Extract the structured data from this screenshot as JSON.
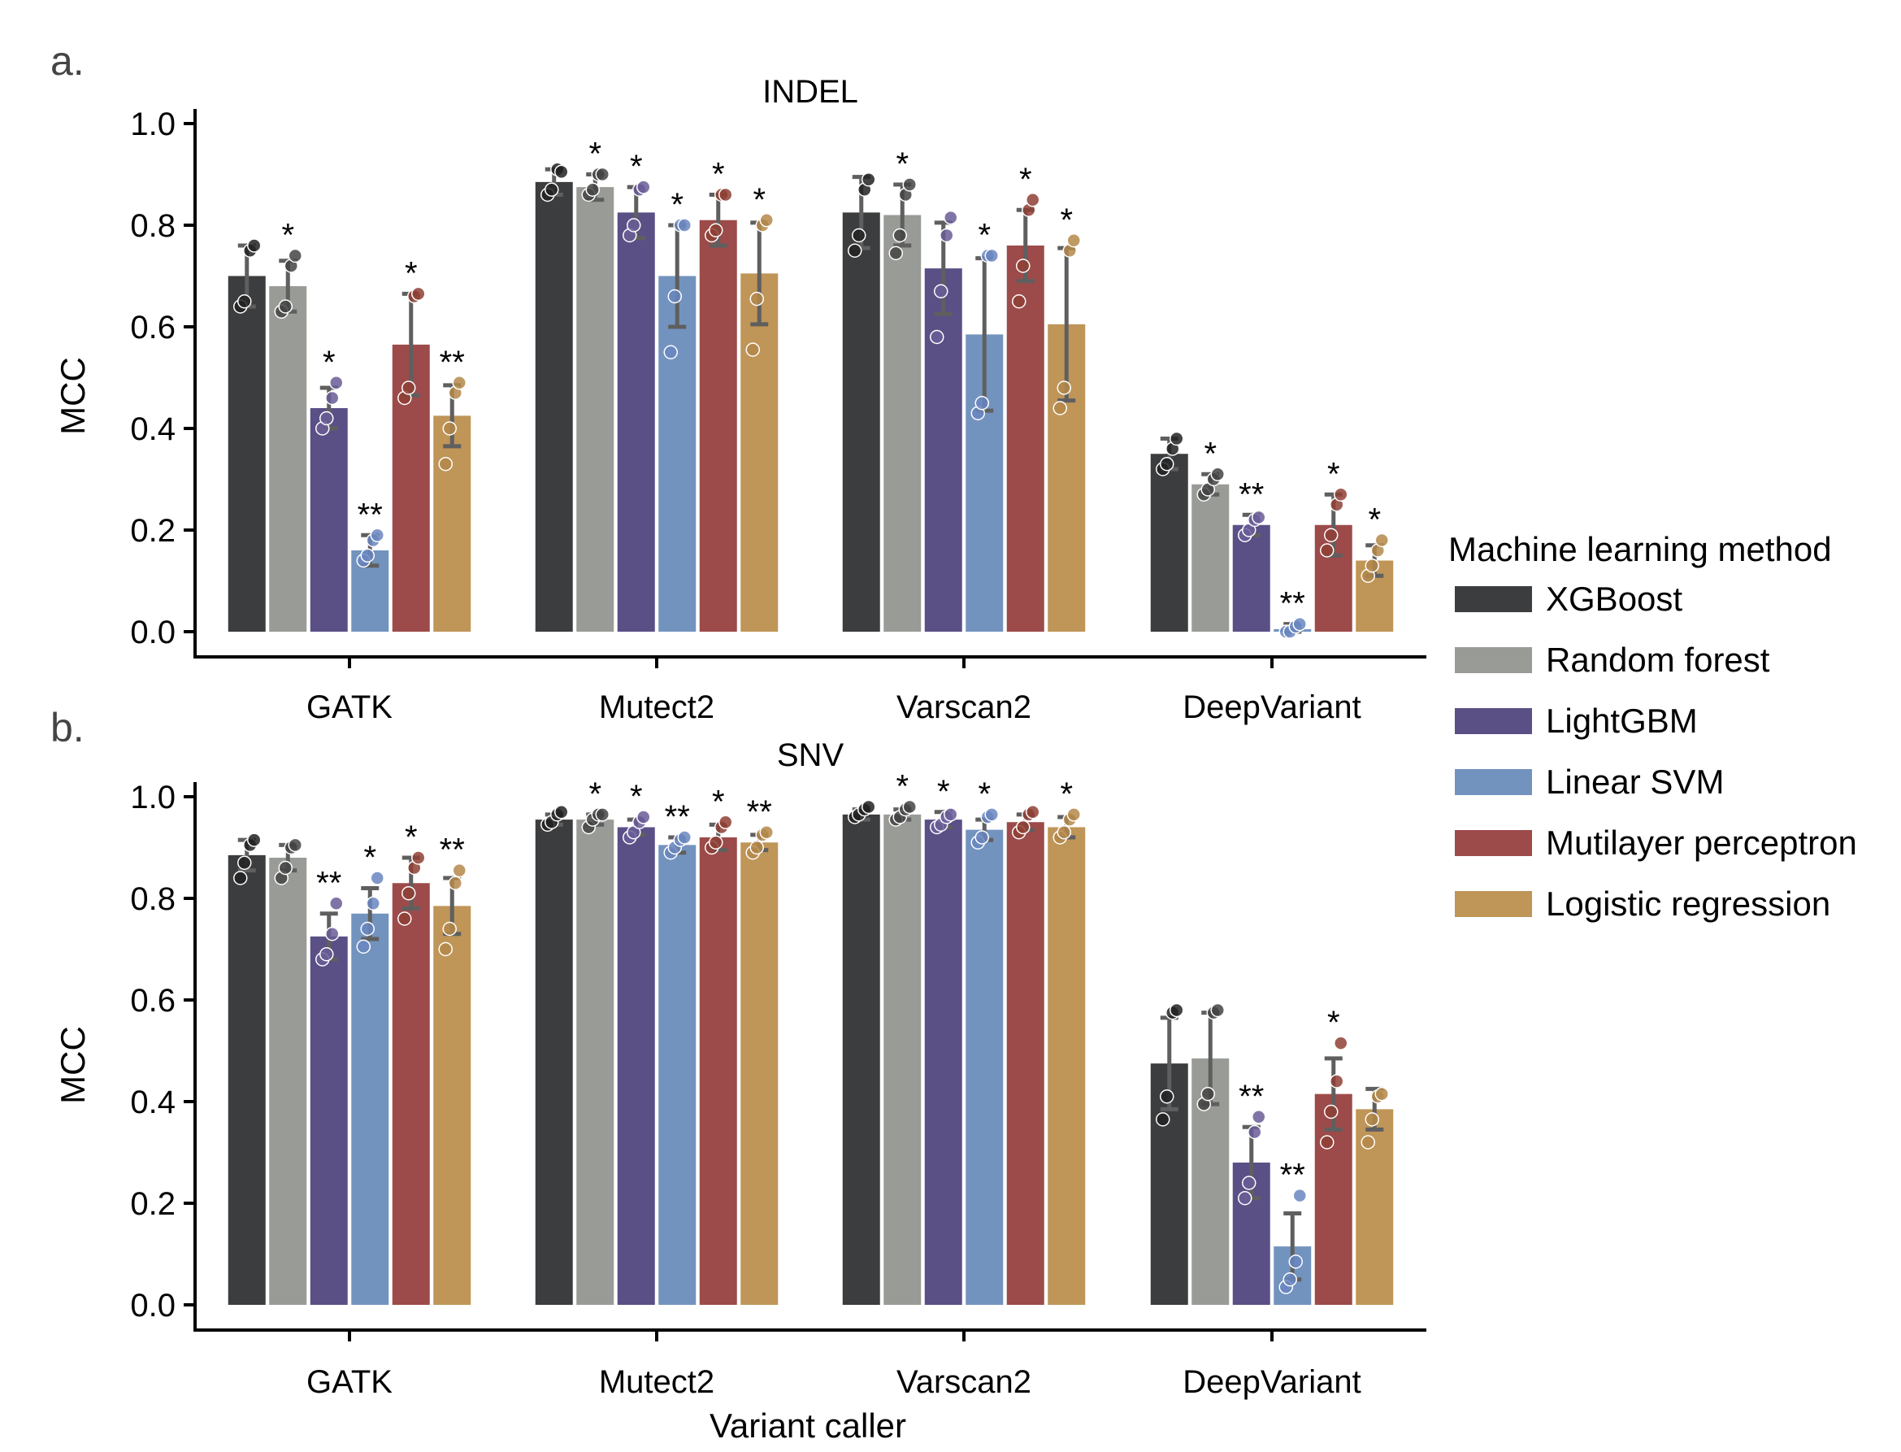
{
  "chart_data": [
    {
      "type": "bar",
      "panel_label": "a.",
      "title": "INDEL",
      "xlabel": "",
      "ylabel": "MCC",
      "ylim": [
        0,
        1.0
      ],
      "yticks": [
        "0.0",
        "0.2",
        "0.4",
        "0.6",
        "0.8",
        "1.0"
      ],
      "categories": [
        "GATK",
        "Mutect2",
        "Varscan2",
        "DeepVariant"
      ],
      "series": [
        {
          "name": "XGBoost",
          "values": [
            0.7,
            0.885,
            0.825,
            0.35
          ],
          "err": [
            0.06,
            0.025,
            0.07,
            0.03
          ],
          "points": [
            [
              0.64,
              0.65,
              0.75,
              0.76
            ],
            [
              0.86,
              0.87,
              0.91,
              0.905
            ],
            [
              0.75,
              0.78,
              0.87,
              0.89
            ],
            [
              0.32,
              0.33,
              0.36,
              0.38
            ]
          ],
          "sig": [
            "",
            "",
            "",
            ""
          ]
        },
        {
          "name": "Random forest",
          "values": [
            0.68,
            0.875,
            0.82,
            0.29
          ],
          "err": [
            0.05,
            0.025,
            0.06,
            0.02
          ],
          "points": [
            [
              0.63,
              0.64,
              0.72,
              0.74
            ],
            [
              0.86,
              0.87,
              0.9,
              0.9
            ],
            [
              0.745,
              0.78,
              0.86,
              0.88
            ],
            [
              0.27,
              0.28,
              0.3,
              0.31
            ]
          ],
          "sig": [
            "*",
            "*",
            "*",
            "*"
          ]
        },
        {
          "name": "LightGBM",
          "values": [
            0.44,
            0.825,
            0.715,
            0.21
          ],
          "err": [
            0.04,
            0.05,
            0.09,
            0.02
          ],
          "points": [
            [
              0.4,
              0.42,
              0.46,
              0.49
            ],
            [
              0.78,
              0.8,
              0.87,
              0.875
            ],
            [
              0.58,
              0.67,
              0.78,
              0.815
            ],
            [
              0.19,
              0.2,
              0.22,
              0.225
            ]
          ],
          "sig": [
            "*",
            "*",
            "",
            "**"
          ]
        },
        {
          "name": "Linear SVM",
          "values": [
            0.16,
            0.7,
            0.585,
            0.005
          ],
          "err": [
            0.03,
            0.1,
            0.15,
            0.01
          ],
          "points": [
            [
              0.14,
              0.15,
              0.18,
              0.19
            ],
            [
              0.55,
              0.66,
              0.8,
              0.8
            ],
            [
              0.43,
              0.45,
              0.74,
              0.74
            ],
            [
              0.0,
              0.0,
              0.01,
              0.015
            ]
          ],
          "sig": [
            "**",
            "*",
            "*",
            "**"
          ]
        },
        {
          "name": "Mutilayer perceptron",
          "values": [
            0.565,
            0.81,
            0.76,
            0.21
          ],
          "err": [
            0.1,
            0.05,
            0.07,
            0.06
          ],
          "points": [
            [
              0.46,
              0.48,
              0.66,
              0.665
            ],
            [
              0.78,
              0.79,
              0.86,
              0.86
            ],
            [
              0.65,
              0.72,
              0.83,
              0.85
            ],
            [
              0.16,
              0.19,
              0.25,
              0.27
            ]
          ],
          "sig": [
            "*",
            "*",
            "*",
            "*"
          ]
        },
        {
          "name": "Logistic regression",
          "values": [
            0.425,
            0.705,
            0.605,
            0.14
          ],
          "err": [
            0.06,
            0.1,
            0.15,
            0.03
          ],
          "points": [
            [
              0.33,
              0.4,
              0.47,
              0.49
            ],
            [
              0.555,
              0.655,
              0.8,
              0.81
            ],
            [
              0.44,
              0.48,
              0.75,
              0.77
            ],
            [
              0.11,
              0.13,
              0.16,
              0.18
            ]
          ],
          "sig": [
            "**",
            "*",
            "*",
            "*"
          ]
        }
      ]
    },
    {
      "type": "bar",
      "panel_label": "b.",
      "title": "SNV",
      "xlabel": "Variant caller",
      "ylabel": "MCC",
      "ylim": [
        0,
        1.0
      ],
      "yticks": [
        "0.0",
        "0.2",
        "0.4",
        "0.6",
        "0.8",
        "1.0"
      ],
      "categories": [
        "GATK",
        "Mutect2",
        "Varscan2",
        "DeepVariant"
      ],
      "series": [
        {
          "name": "XGBoost",
          "values": [
            0.885,
            0.955,
            0.965,
            0.475
          ],
          "err": [
            0.03,
            0.01,
            0.01,
            0.09
          ],
          "points": [
            [
              0.84,
              0.87,
              0.905,
              0.915
            ],
            [
              0.945,
              0.95,
              0.965,
              0.97
            ],
            [
              0.96,
              0.965,
              0.975,
              0.98
            ],
            [
              0.365,
              0.41,
              0.575,
              0.58
            ]
          ],
          "sig": [
            "",
            "",
            "",
            ""
          ]
        },
        {
          "name": "Random forest",
          "values": [
            0.88,
            0.955,
            0.965,
            0.485
          ],
          "err": [
            0.025,
            0.01,
            0.01,
            0.09
          ],
          "points": [
            [
              0.84,
              0.86,
              0.9,
              0.905
            ],
            [
              0.94,
              0.955,
              0.965,
              0.965
            ],
            [
              0.955,
              0.96,
              0.975,
              0.98
            ],
            [
              0.395,
              0.415,
              0.575,
              0.58
            ]
          ],
          "sig": [
            "",
            "*",
            "*",
            ""
          ]
        },
        {
          "name": "LightGBM",
          "values": [
            0.725,
            0.94,
            0.955,
            0.28
          ],
          "err": [
            0.045,
            0.015,
            0.015,
            0.07
          ],
          "points": [
            [
              0.68,
              0.69,
              0.73,
              0.79
            ],
            [
              0.92,
              0.93,
              0.95,
              0.96
            ],
            [
              0.94,
              0.945,
              0.96,
              0.965
            ],
            [
              0.21,
              0.24,
              0.34,
              0.37
            ]
          ],
          "sig": [
            "**",
            "*",
            "*",
            "**"
          ]
        },
        {
          "name": "Linear SVM",
          "values": [
            0.77,
            0.905,
            0.935,
            0.115
          ],
          "err": [
            0.05,
            0.015,
            0.02,
            0.065
          ],
          "points": [
            [
              0.705,
              0.74,
              0.79,
              0.84
            ],
            [
              0.89,
              0.9,
              0.915,
              0.92
            ],
            [
              0.91,
              0.92,
              0.96,
              0.965
            ],
            [
              0.035,
              0.05,
              0.085,
              0.215
            ]
          ],
          "sig": [
            "*",
            "**",
            "*",
            "**"
          ]
        },
        {
          "name": "Mutilayer perceptron",
          "values": [
            0.83,
            0.92,
            0.95,
            0.415
          ],
          "err": [
            0.05,
            0.025,
            0.015,
            0.07
          ],
          "points": [
            [
              0.76,
              0.81,
              0.86,
              0.88
            ],
            [
              0.9,
              0.91,
              0.94,
              0.95
            ],
            [
              0.93,
              0.94,
              0.965,
              0.97
            ],
            [
              0.32,
              0.38,
              0.44,
              0.515
            ]
          ],
          "sig": [
            "*",
            "*",
            "",
            "*"
          ]
        },
        {
          "name": "Logistic regression",
          "values": [
            0.785,
            0.91,
            0.94,
            0.385
          ],
          "err": [
            0.055,
            0.015,
            0.02,
            0.04
          ],
          "points": [
            [
              0.7,
              0.74,
              0.83,
              0.855
            ],
            [
              0.89,
              0.9,
              0.925,
              0.93
            ],
            [
              0.92,
              0.93,
              0.955,
              0.965
            ],
            [
              0.32,
              0.365,
              0.41,
              0.415
            ]
          ],
          "sig": [
            "**",
            "**",
            "*",
            ""
          ]
        }
      ]
    }
  ],
  "legend": {
    "title": "Machine learning method",
    "placement": "right",
    "items": [
      "XGBoost",
      "Random forest",
      "LightGBM",
      "Linear SVM",
      "Mutilayer perceptron",
      "Logistic regression"
    ]
  },
  "colors": [
    "#3c3d3f",
    "#999c96",
    "#5a5086",
    "#7393bf",
    "#9c4b4a",
    "#bf9558"
  ],
  "point_colors": [
    "#222222",
    "#444444",
    "#6a5c98",
    "#6a86c0",
    "#8f4035",
    "#b4884a"
  ]
}
